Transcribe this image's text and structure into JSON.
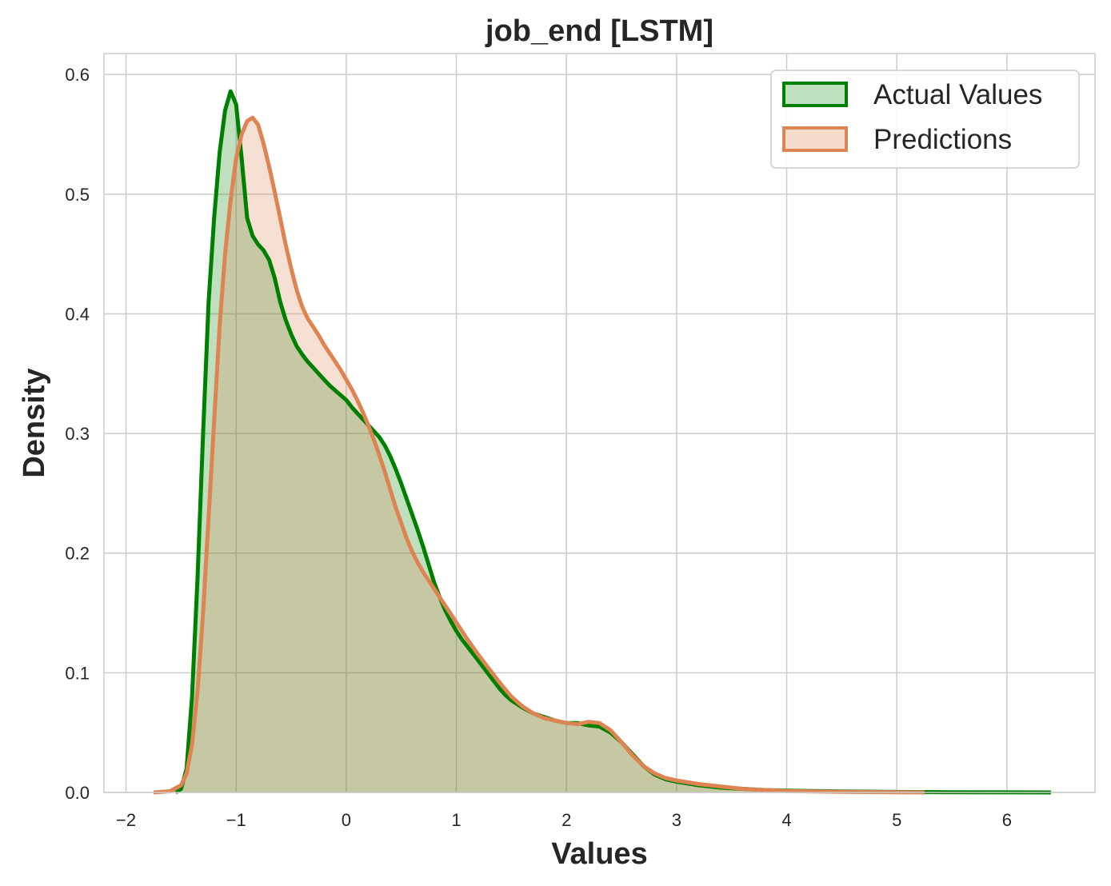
{
  "chart_data": {
    "type": "area",
    "title": "job_end [LSTM]",
    "xlabel": "Values",
    "ylabel": "Density",
    "xlim": [
      -2.2,
      6.8
    ],
    "ylim": [
      0,
      0.6175
    ],
    "xticks": [
      -2,
      -1,
      0,
      1,
      2,
      3,
      4,
      5,
      6
    ],
    "xtick_labels": [
      "−2",
      "−1",
      "0",
      "1",
      "2",
      "3",
      "4",
      "5",
      "6"
    ],
    "yticks": [
      0.0,
      0.1,
      0.2,
      0.3,
      0.4,
      0.5,
      0.6
    ],
    "ytick_labels": [
      "0.0",
      "0.1",
      "0.2",
      "0.3",
      "0.4",
      "0.5",
      "0.6"
    ],
    "grid": true,
    "legend": "top-right",
    "series": [
      {
        "name": "Actual Values",
        "color": "#008000",
        "fill": "#bfe0bf",
        "points": [
          [
            -1.55,
            0.0
          ],
          [
            -1.5,
            0.003
          ],
          [
            -1.45,
            0.02
          ],
          [
            -1.4,
            0.08
          ],
          [
            -1.35,
            0.18
          ],
          [
            -1.3,
            0.3
          ],
          [
            -1.25,
            0.41
          ],
          [
            -1.2,
            0.48
          ],
          [
            -1.15,
            0.535
          ],
          [
            -1.1,
            0.57
          ],
          [
            -1.05,
            0.586
          ],
          [
            -1.0,
            0.575
          ],
          [
            -0.95,
            0.53
          ],
          [
            -0.9,
            0.48
          ],
          [
            -0.85,
            0.465
          ],
          [
            -0.8,
            0.458
          ],
          [
            -0.75,
            0.453
          ],
          [
            -0.7,
            0.445
          ],
          [
            -0.65,
            0.43
          ],
          [
            -0.6,
            0.41
          ],
          [
            -0.55,
            0.395
          ],
          [
            -0.5,
            0.383
          ],
          [
            -0.45,
            0.373
          ],
          [
            -0.4,
            0.366
          ],
          [
            -0.35,
            0.36
          ],
          [
            -0.3,
            0.355
          ],
          [
            -0.25,
            0.35
          ],
          [
            -0.2,
            0.345
          ],
          [
            -0.15,
            0.34
          ],
          [
            -0.1,
            0.336
          ],
          [
            -0.05,
            0.332
          ],
          [
            0.0,
            0.328
          ],
          [
            0.05,
            0.322
          ],
          [
            0.1,
            0.317
          ],
          [
            0.15,
            0.312
          ],
          [
            0.2,
            0.307
          ],
          [
            0.25,
            0.302
          ],
          [
            0.3,
            0.297
          ],
          [
            0.35,
            0.29
          ],
          [
            0.4,
            0.281
          ],
          [
            0.45,
            0.27
          ],
          [
            0.5,
            0.258
          ],
          [
            0.55,
            0.245
          ],
          [
            0.6,
            0.232
          ],
          [
            0.65,
            0.219
          ],
          [
            0.7,
            0.205
          ],
          [
            0.75,
            0.19
          ],
          [
            0.8,
            0.175
          ],
          [
            0.85,
            0.163
          ],
          [
            0.9,
            0.152
          ],
          [
            0.95,
            0.143
          ],
          [
            1.0,
            0.135
          ],
          [
            1.05,
            0.128
          ],
          [
            1.1,
            0.122
          ],
          [
            1.15,
            0.116
          ],
          [
            1.2,
            0.11
          ],
          [
            1.25,
            0.104
          ],
          [
            1.3,
            0.098
          ],
          [
            1.35,
            0.092
          ],
          [
            1.4,
            0.086
          ],
          [
            1.45,
            0.081
          ],
          [
            1.5,
            0.077
          ],
          [
            1.6,
            0.071
          ],
          [
            1.7,
            0.066
          ],
          [
            1.8,
            0.063
          ],
          [
            1.9,
            0.06
          ],
          [
            2.0,
            0.058
          ],
          [
            2.1,
            0.058
          ],
          [
            2.2,
            0.056
          ],
          [
            2.3,
            0.055
          ],
          [
            2.4,
            0.05
          ],
          [
            2.5,
            0.042
          ],
          [
            2.6,
            0.032
          ],
          [
            2.7,
            0.022
          ],
          [
            2.8,
            0.015
          ],
          [
            2.9,
            0.011
          ],
          [
            3.0,
            0.009
          ],
          [
            3.2,
            0.006
          ],
          [
            3.4,
            0.004
          ],
          [
            3.6,
            0.003
          ],
          [
            3.8,
            0.002
          ],
          [
            4.0,
            0.0015
          ],
          [
            4.5,
            0.0008
          ],
          [
            5.0,
            0.0004
          ],
          [
            5.5,
            0.0002
          ],
          [
            6.0,
            0.0001
          ],
          [
            6.4,
            0.0
          ]
        ]
      },
      {
        "name": "Predictions",
        "color": "#dd8452",
        "fill": "#f5dccb",
        "points": [
          [
            -1.75,
            0.0
          ],
          [
            -1.6,
            0.001
          ],
          [
            -1.5,
            0.006
          ],
          [
            -1.45,
            0.016
          ],
          [
            -1.4,
            0.04
          ],
          [
            -1.35,
            0.085
          ],
          [
            -1.3,
            0.15
          ],
          [
            -1.25,
            0.23
          ],
          [
            -1.2,
            0.31
          ],
          [
            -1.15,
            0.39
          ],
          [
            -1.1,
            0.45
          ],
          [
            -1.05,
            0.495
          ],
          [
            -1.0,
            0.53
          ],
          [
            -0.95,
            0.55
          ],
          [
            -0.9,
            0.561
          ],
          [
            -0.85,
            0.564
          ],
          [
            -0.8,
            0.558
          ],
          [
            -0.75,
            0.542
          ],
          [
            -0.7,
            0.523
          ],
          [
            -0.65,
            0.502
          ],
          [
            -0.6,
            0.48
          ],
          [
            -0.55,
            0.458
          ],
          [
            -0.5,
            0.438
          ],
          [
            -0.45,
            0.42
          ],
          [
            -0.4,
            0.406
          ],
          [
            -0.35,
            0.396
          ],
          [
            -0.3,
            0.389
          ],
          [
            -0.25,
            0.382
          ],
          [
            -0.2,
            0.374
          ],
          [
            -0.15,
            0.367
          ],
          [
            -0.1,
            0.36
          ],
          [
            -0.05,
            0.353
          ],
          [
            0.0,
            0.345
          ],
          [
            0.05,
            0.337
          ],
          [
            0.1,
            0.328
          ],
          [
            0.15,
            0.318
          ],
          [
            0.2,
            0.307
          ],
          [
            0.25,
            0.295
          ],
          [
            0.3,
            0.282
          ],
          [
            0.35,
            0.268
          ],
          [
            0.4,
            0.253
          ],
          [
            0.45,
            0.238
          ],
          [
            0.5,
            0.225
          ],
          [
            0.55,
            0.212
          ],
          [
            0.6,
            0.201
          ],
          [
            0.65,
            0.192
          ],
          [
            0.7,
            0.184
          ],
          [
            0.75,
            0.177
          ],
          [
            0.8,
            0.17
          ],
          [
            0.85,
            0.163
          ],
          [
            0.9,
            0.156
          ],
          [
            0.95,
            0.149
          ],
          [
            1.0,
            0.142
          ],
          [
            1.1,
            0.128
          ],
          [
            1.2,
            0.115
          ],
          [
            1.3,
            0.103
          ],
          [
            1.4,
            0.091
          ],
          [
            1.5,
            0.08
          ],
          [
            1.6,
            0.072
          ],
          [
            1.7,
            0.066
          ],
          [
            1.8,
            0.062
          ],
          [
            1.9,
            0.06
          ],
          [
            2.0,
            0.058
          ],
          [
            2.1,
            0.057
          ],
          [
            2.2,
            0.059
          ],
          [
            2.3,
            0.058
          ],
          [
            2.4,
            0.052
          ],
          [
            2.5,
            0.042
          ],
          [
            2.6,
            0.031
          ],
          [
            2.7,
            0.022
          ],
          [
            2.8,
            0.016
          ],
          [
            2.9,
            0.012
          ],
          [
            3.0,
            0.01
          ],
          [
            3.2,
            0.007
          ],
          [
            3.4,
            0.005
          ],
          [
            3.6,
            0.003
          ],
          [
            3.8,
            0.002
          ],
          [
            4.0,
            0.0012
          ],
          [
            4.5,
            0.0005
          ],
          [
            5.0,
            0.0002
          ],
          [
            5.25,
            0.0
          ]
        ]
      }
    ]
  }
}
